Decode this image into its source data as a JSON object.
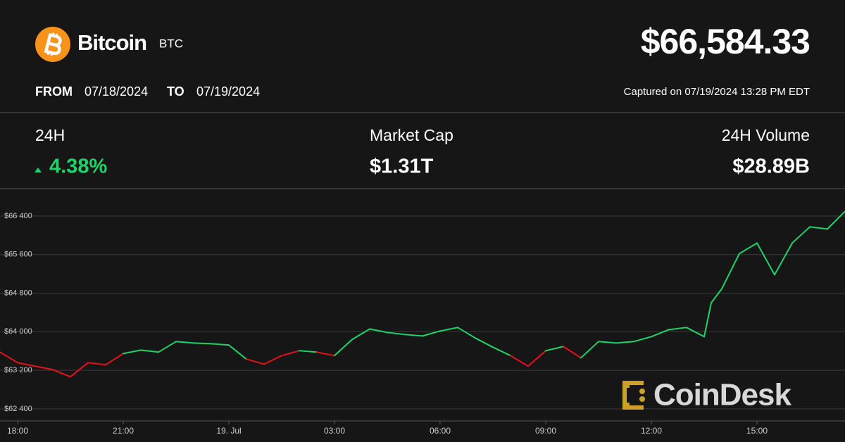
{
  "header": {
    "name": "Bitcoin",
    "symbol": "BTC",
    "price": "$66,584.33",
    "from_label": "FROM",
    "from": "07/18/2024",
    "to_label": "TO",
    "to": "07/19/2024",
    "captured": "Captured on 07/19/2024 13:28 PM EDT"
  },
  "stats": [
    {
      "label": "24H",
      "value": "4.38%"
    },
    {
      "label": "Market Cap",
      "value": "$1.31T"
    },
    {
      "label": "24H Volume",
      "value": "$28.89B"
    }
  ],
  "watermark": "CoinDesk",
  "chart_data": {
    "type": "line",
    "x": [
      -0.5,
      0,
      0.5,
      1,
      1.5,
      2,
      2.5,
      3,
      3.5,
      4,
      4.5,
      5,
      5.5,
      6,
      6.5,
      7,
      7.5,
      8,
      8.5,
      9,
      9.5,
      10,
      10.5,
      11,
      11.5,
      12,
      12.5,
      13,
      13.5,
      14,
      14.5,
      15,
      15.5,
      16,
      16.5,
      17,
      17.5,
      18,
      18.5,
      19,
      19.5,
      19.7,
      20,
      20.5,
      21,
      21.5,
      22,
      22.5,
      23,
      23.5
    ],
    "series": [
      {
        "color": "#1fd36a",
        "negative_color": "#e5121b",
        "values": [
          63577,
          63358,
          63285,
          63212,
          63066,
          63358,
          63314,
          63547,
          63620,
          63577,
          63796,
          63766,
          63752,
          63723,
          63431,
          63328,
          63504,
          63606,
          63577,
          63504,
          63839,
          64058,
          63985,
          63942,
          63912,
          64015,
          64088,
          63869,
          63679,
          63504,
          63285,
          63606,
          63693,
          63460,
          63796,
          63766,
          63796,
          63898,
          64044,
          64088,
          63898,
          64600,
          64891,
          65621,
          65840,
          65183,
          65840,
          66175,
          66132,
          66497
        ]
      }
    ],
    "xlim": [
      -0.5,
      23.5
    ],
    "xticks": [
      {
        "value": 0,
        "label": "18:00"
      },
      {
        "value": 3,
        "label": "21:00"
      },
      {
        "value": 6,
        "label": "19. Jul"
      },
      {
        "value": 9,
        "label": "03:00"
      },
      {
        "value": 12,
        "label": "06:00"
      },
      {
        "value": 15,
        "label": "09:00"
      },
      {
        "value": 18,
        "label": "12:00"
      },
      {
        "value": 21,
        "label": "15:00"
      }
    ],
    "ylim": [
      62150,
      66970
    ],
    "yticks": [
      {
        "value": 62400,
        "label": "$62 400"
      },
      {
        "value": 63200,
        "label": "$63 200"
      },
      {
        "value": 64000,
        "label": "$64 000"
      },
      {
        "value": 64800,
        "label": "$64 800"
      },
      {
        "value": 65600,
        "label": "$65 600"
      },
      {
        "value": 66400,
        "label": "$66 400"
      }
    ],
    "grid": true
  }
}
